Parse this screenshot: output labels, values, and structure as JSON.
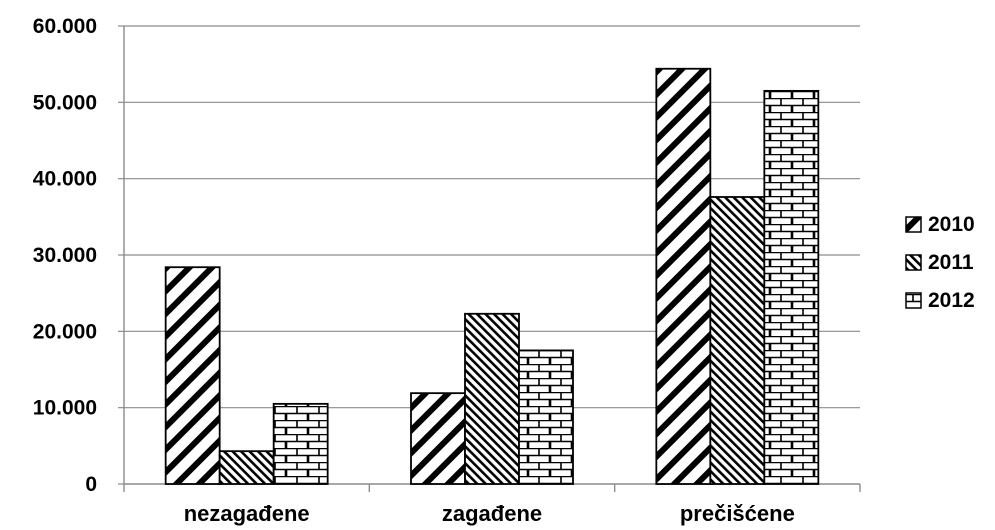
{
  "chart_data": {
    "type": "bar",
    "title": "",
    "xlabel": "",
    "ylabel": "",
    "categories": [
      "nezagađene",
      "zagađene",
      "prečišćene"
    ],
    "series": [
      {
        "name": "2010",
        "values": [
          28400,
          11900,
          54400
        ],
        "pattern": "diag-wide"
      },
      {
        "name": "2011",
        "values": [
          4300,
          22300,
          37600
        ],
        "pattern": "diag-dense"
      },
      {
        "name": "2012",
        "values": [
          10500,
          17500,
          51500
        ],
        "pattern": "brick"
      }
    ],
    "ylim": [
      0,
      60000
    ],
    "yticks": [
      {
        "value": 0,
        "label": "0"
      },
      {
        "value": 10000,
        "label": "10.000"
      },
      {
        "value": 20000,
        "label": "20.000"
      },
      {
        "value": 30000,
        "label": "30.000"
      },
      {
        "value": 40000,
        "label": "40.000"
      },
      {
        "value": 50000,
        "label": "50.000"
      },
      {
        "value": 60000,
        "label": "60.000"
      }
    ],
    "grid": true,
    "legend": "right"
  }
}
